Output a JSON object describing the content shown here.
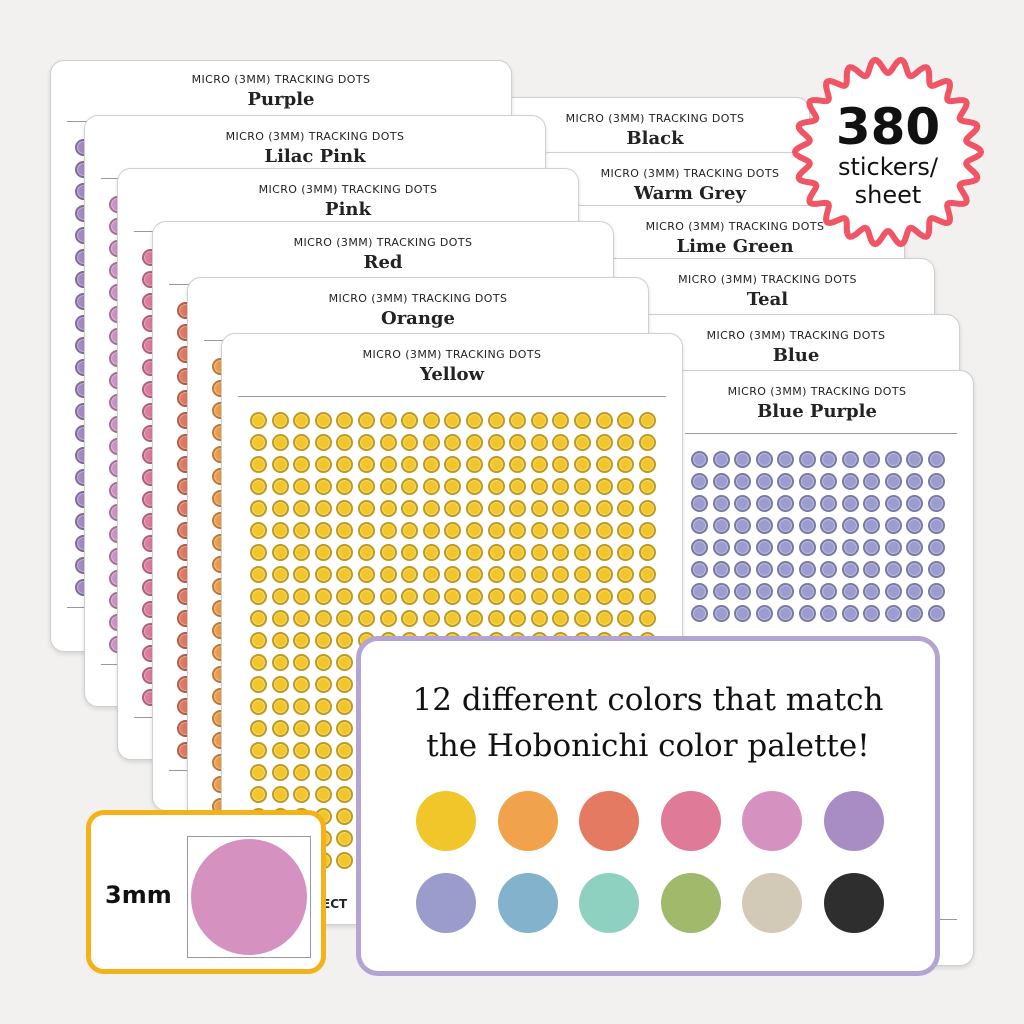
{
  "sheet_subtitle": "MICRO (3MM) TRACKING DOTS",
  "sheets": {
    "right": [
      {
        "name": "Black"
      },
      {
        "name": "Warm Grey"
      },
      {
        "name": "Lime Green"
      },
      {
        "name": "Teal"
      },
      {
        "name": "Blue"
      },
      {
        "name": "Blue Purple"
      }
    ],
    "left": [
      {
        "name": "Purple"
      },
      {
        "name": "Lilac Pink"
      },
      {
        "name": "Pink"
      },
      {
        "name": "Red"
      },
      {
        "name": "Orange"
      },
      {
        "name": "Yellow"
      }
    ]
  },
  "badge": {
    "count": "380",
    "label_line1": "stickers/",
    "label_line2": "sheet",
    "outline_color": "#ef5565"
  },
  "info_card": {
    "line1": "12 different colors that match",
    "line2": "the Hobonichi color palette!",
    "border_color": "#b3a4d4",
    "swatches": [
      {
        "name": "yellow",
        "color": "#f1c62b"
      },
      {
        "name": "orange",
        "color": "#f0a24c"
      },
      {
        "name": "red",
        "color": "#e57a62"
      },
      {
        "name": "pink",
        "color": "#df7b98"
      },
      {
        "name": "lilac-pink",
        "color": "#d592c1"
      },
      {
        "name": "purple",
        "color": "#a88dc4"
      },
      {
        "name": "blue-purple",
        "color": "#9b9ccb"
      },
      {
        "name": "blue",
        "color": "#82b2cc"
      },
      {
        "name": "teal",
        "color": "#8fd1c0"
      },
      {
        "name": "lime-green",
        "color": "#a0b96b"
      },
      {
        "name": "warm-grey",
        "color": "#d2c9b6"
      },
      {
        "name": "black",
        "color": "#2e2e2e"
      }
    ]
  },
  "size_card": {
    "label": "3mm",
    "border_color": "#f3b21a",
    "dot_color": "#d592c1"
  },
  "footer_fragment": "ECT",
  "dot_colors": {
    "purple": "#a58cc6",
    "lilac": "#d094c5",
    "pink": "#dc7d9b",
    "red": "#e07a62",
    "orange": "#ee9e4b",
    "yellow": "#f2c62b",
    "bluepurple": "#9c9cd0"
  }
}
